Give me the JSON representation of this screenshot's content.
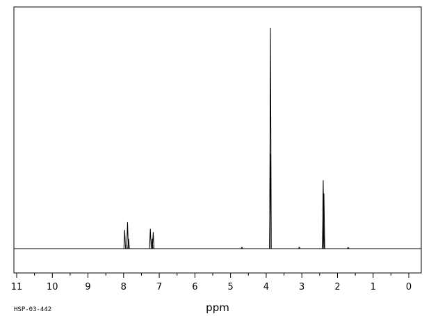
{
  "chart_data": {
    "type": "line",
    "xlabel": "ppm",
    "spectrum_id": "HSP-03-442",
    "x_axis": {
      "min": 0,
      "max": 11,
      "reversed": true,
      "major_ticks": [
        11,
        10,
        9,
        8,
        7,
        6,
        5,
        4,
        3,
        2,
        1,
        0
      ],
      "minor_step": 0.5
    },
    "y_axis": {
      "min": 0,
      "max": 1.0,
      "shown": false
    },
    "grid": false,
    "legend": "none",
    "peaks": [
      {
        "ppm": 7.97,
        "height": 0.085
      },
      {
        "ppm": 7.89,
        "height": 0.12
      },
      {
        "ppm": 7.86,
        "height": 0.045
      },
      {
        "ppm": 7.25,
        "height": 0.09
      },
      {
        "ppm": 7.2,
        "height": 0.045
      },
      {
        "ppm": 7.17,
        "height": 0.075
      },
      {
        "ppm": 4.68,
        "height": 0.006
      },
      {
        "ppm": 3.88,
        "height": 1.0
      },
      {
        "ppm": 3.885,
        "height": 0.43
      },
      {
        "ppm": 3.07,
        "height": 0.006
      },
      {
        "ppm": 2.4,
        "height": 0.31
      },
      {
        "ppm": 2.38,
        "height": 0.25
      },
      {
        "ppm": 1.7,
        "height": 0.005
      }
    ],
    "colors": {
      "line": "#000000",
      "frame": "#000000",
      "background": "#ffffff"
    }
  }
}
